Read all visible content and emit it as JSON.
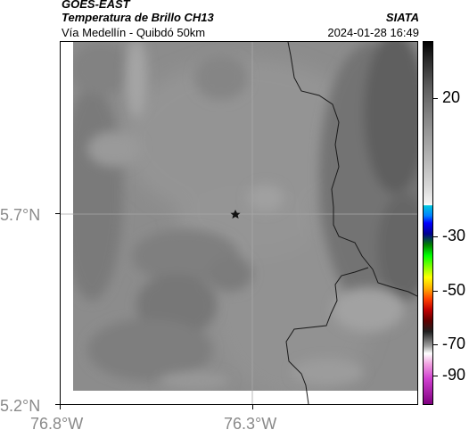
{
  "header": {
    "satellite": "GOES-EAST",
    "product": "Temperatura de Brillo CH13",
    "region": "Vía Medellín - Quibdó 50km",
    "organization": "SIATA",
    "timestamp": "2024-01-28 16:49"
  },
  "map": {
    "lat_labels": [
      "5.7°N",
      "5.2°N"
    ],
    "lon_labels": [
      "76.8°W",
      "76.3°W"
    ],
    "marker": "star-icon"
  },
  "colorbar": {
    "labels": [
      "20",
      "-30",
      "-50",
      "-70",
      "-90"
    ]
  }
}
